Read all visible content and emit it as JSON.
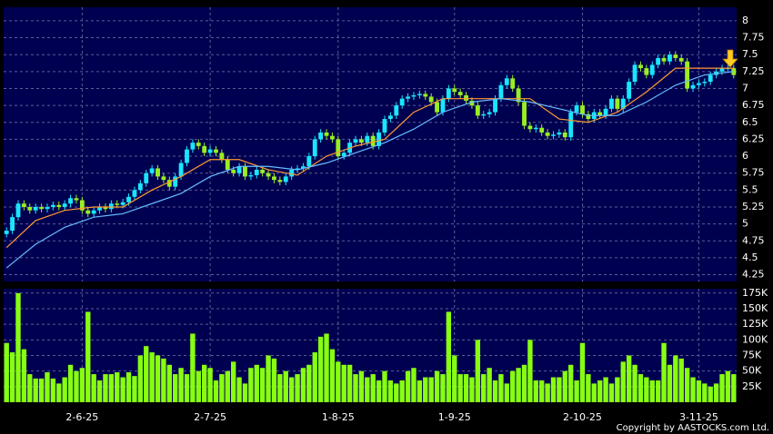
{
  "chart_data": [
    {
      "type": "candlestick",
      "up_color": "#19e6ff",
      "down_color": "#99ee22",
      "xlim": [
        -0.5,
        125.5
      ],
      "ylim": [
        4.15,
        8.2
      ],
      "yticks": [
        4.25,
        4.5,
        4.75,
        5,
        5.25,
        5.5,
        5.75,
        6,
        6.25,
        6.5,
        6.75,
        7,
        7.25,
        7.5,
        7.75,
        8
      ],
      "grid": true,
      "open": [
        4.85,
        4.9,
        5.1,
        5.3,
        5.25,
        5.2,
        5.25,
        5.22,
        5.25,
        5.28,
        5.25,
        5.3,
        5.38,
        5.35,
        5.2,
        5.15,
        5.2,
        5.25,
        5.22,
        5.3,
        5.28,
        5.32,
        5.4,
        5.5,
        5.6,
        5.75,
        5.82,
        5.7,
        5.65,
        5.55,
        5.7,
        5.9,
        6.1,
        6.2,
        6.15,
        6.05,
        6.1,
        6.05,
        5.95,
        5.8,
        5.75,
        5.85,
        5.7,
        5.72,
        5.8,
        5.75,
        5.7,
        5.65,
        5.62,
        5.7,
        5.8,
        5.82,
        5.85,
        6.0,
        6.25,
        6.35,
        6.3,
        6.25,
        6.0,
        6.05,
        6.2,
        6.25,
        6.2,
        6.3,
        6.15,
        6.35,
        6.55,
        6.6,
        6.75,
        6.85,
        6.88,
        6.9,
        6.92,
        6.88,
        6.8,
        6.65,
        6.85,
        7.0,
        6.95,
        6.9,
        6.82,
        6.75,
        6.6,
        6.62,
        6.65,
        6.85,
        7.05,
        7.15,
        7.0,
        6.8,
        6.45,
        6.4,
        6.42,
        6.35,
        6.3,
        6.32,
        6.35,
        6.28,
        6.65,
        6.75,
        6.62,
        6.55,
        6.65,
        6.6,
        6.7,
        6.85,
        6.7,
        6.85,
        7.1,
        7.35,
        7.3,
        7.2,
        7.35,
        7.45,
        7.4,
        7.5,
        7.45,
        7.4,
        7.0,
        7.05,
        7.08,
        7.1,
        7.2,
        7.25,
        7.3,
        7.3
      ],
      "high": [
        4.95,
        5.15,
        5.35,
        5.35,
        5.3,
        5.3,
        5.3,
        5.3,
        5.33,
        5.33,
        5.35,
        5.43,
        5.43,
        5.4,
        5.25,
        5.25,
        5.3,
        5.3,
        5.35,
        5.35,
        5.37,
        5.45,
        5.55,
        5.65,
        5.8,
        5.87,
        5.87,
        5.75,
        5.7,
        5.75,
        5.95,
        6.15,
        6.25,
        6.25,
        6.2,
        6.15,
        6.15,
        6.1,
        6.0,
        5.85,
        5.9,
        5.9,
        5.77,
        5.85,
        5.85,
        5.8,
        5.75,
        5.7,
        5.75,
        5.85,
        5.87,
        5.9,
        6.05,
        6.3,
        6.4,
        6.4,
        6.35,
        6.3,
        6.1,
        6.25,
        6.3,
        6.3,
        6.35,
        6.35,
        6.4,
        6.6,
        6.65,
        6.8,
        6.9,
        6.93,
        6.95,
        6.97,
        6.97,
        6.93,
        6.85,
        6.9,
        7.05,
        7.05,
        7.0,
        6.95,
        6.87,
        6.8,
        6.67,
        6.7,
        6.9,
        7.1,
        7.2,
        7.2,
        7.05,
        6.85,
        6.5,
        6.47,
        6.47,
        6.4,
        6.37,
        6.4,
        6.4,
        6.7,
        6.8,
        6.8,
        6.67,
        6.7,
        6.7,
        6.75,
        6.9,
        6.9,
        6.9,
        7.15,
        7.4,
        7.4,
        7.35,
        7.4,
        7.5,
        7.5,
        7.55,
        7.55,
        7.5,
        7.45,
        7.1,
        7.13,
        7.15,
        7.25,
        7.3,
        7.35,
        7.35,
        7.35
      ],
      "low": [
        4.8,
        4.85,
        5.05,
        5.2,
        5.15,
        5.15,
        5.17,
        5.17,
        5.2,
        5.2,
        5.2,
        5.25,
        5.3,
        5.15,
        5.1,
        5.1,
        5.15,
        5.17,
        5.17,
        5.23,
        5.23,
        5.27,
        5.35,
        5.45,
        5.55,
        5.7,
        5.65,
        5.6,
        5.5,
        5.5,
        5.65,
        5.85,
        6.05,
        6.1,
        6.0,
        6.0,
        6.0,
        5.9,
        5.75,
        5.7,
        5.7,
        5.65,
        5.65,
        5.67,
        5.7,
        5.65,
        5.6,
        5.57,
        5.57,
        5.65,
        5.75,
        5.77,
        5.8,
        5.95,
        6.2,
        6.25,
        6.2,
        5.95,
        5.95,
        6.0,
        6.15,
        6.15,
        6.15,
        6.1,
        6.1,
        6.3,
        6.5,
        6.55,
        6.7,
        6.8,
        6.83,
        6.85,
        6.83,
        6.75,
        6.6,
        6.6,
        6.8,
        6.9,
        6.85,
        6.77,
        6.7,
        6.55,
        6.55,
        6.57,
        6.6,
        6.8,
        7.0,
        6.95,
        6.75,
        6.4,
        6.35,
        6.35,
        6.3,
        6.25,
        6.25,
        6.27,
        6.23,
        6.23,
        6.6,
        6.57,
        6.5,
        6.5,
        6.55,
        6.55,
        6.65,
        6.65,
        6.65,
        6.8,
        7.05,
        7.25,
        7.15,
        7.15,
        7.3,
        7.35,
        7.35,
        7.4,
        7.35,
        6.95,
        6.95,
        7.0,
        7.03,
        7.05,
        7.15,
        7.2,
        7.25,
        7.15
      ],
      "close": [
        4.9,
        5.1,
        5.3,
        5.25,
        5.2,
        5.25,
        5.22,
        5.25,
        5.28,
        5.25,
        5.3,
        5.38,
        5.35,
        5.2,
        5.15,
        5.2,
        5.25,
        5.22,
        5.3,
        5.28,
        5.32,
        5.4,
        5.5,
        5.6,
        5.75,
        5.82,
        5.7,
        5.65,
        5.55,
        5.7,
        5.9,
        6.1,
        6.2,
        6.15,
        6.05,
        6.1,
        6.05,
        5.95,
        5.8,
        5.75,
        5.85,
        5.7,
        5.72,
        5.8,
        5.75,
        5.7,
        5.65,
        5.62,
        5.7,
        5.8,
        5.82,
        5.85,
        6.0,
        6.25,
        6.35,
        6.3,
        6.25,
        6.0,
        6.05,
        6.2,
        6.25,
        6.2,
        6.3,
        6.15,
        6.35,
        6.55,
        6.6,
        6.75,
        6.85,
        6.88,
        6.9,
        6.92,
        6.88,
        6.8,
        6.65,
        6.85,
        7.0,
        6.95,
        6.9,
        6.82,
        6.75,
        6.6,
        6.62,
        6.65,
        6.85,
        7.05,
        7.15,
        7.0,
        6.8,
        6.45,
        6.4,
        6.42,
        6.35,
        6.3,
        6.32,
        6.35,
        6.28,
        6.65,
        6.75,
        6.62,
        6.55,
        6.65,
        6.6,
        6.7,
        6.85,
        6.7,
        6.85,
        7.1,
        7.35,
        7.3,
        7.2,
        7.35,
        7.45,
        7.4,
        7.5,
        7.45,
        7.4,
        7.0,
        7.05,
        7.08,
        7.1,
        7.2,
        7.25,
        7.3,
        7.3,
        7.2
      ],
      "lines": [
        {
          "color": "#ff9933",
          "x": [
            0,
            5,
            10,
            15,
            20,
            25,
            30,
            35,
            40,
            45,
            50,
            55,
            60,
            65,
            70,
            75,
            80,
            85,
            90,
            95,
            100,
            105,
            110,
            115,
            120,
            125
          ],
          "values": [
            4.65,
            5.05,
            5.2,
            5.25,
            5.25,
            5.5,
            5.7,
            5.95,
            5.95,
            5.8,
            5.72,
            6.0,
            6.15,
            6.25,
            6.65,
            6.85,
            6.85,
            6.85,
            6.85,
            6.55,
            6.5,
            6.65,
            6.95,
            7.3,
            7.3,
            7.3
          ]
        },
        {
          "color": "#66bbff",
          "x": [
            0,
            5,
            10,
            15,
            20,
            25,
            30,
            35,
            40,
            45,
            50,
            55,
            60,
            65,
            70,
            75,
            80,
            85,
            90,
            95,
            100,
            105,
            110,
            115,
            120,
            125
          ],
          "values": [
            4.35,
            4.7,
            4.95,
            5.1,
            5.15,
            5.3,
            5.45,
            5.7,
            5.85,
            5.85,
            5.8,
            5.9,
            6.05,
            6.2,
            6.4,
            6.65,
            6.8,
            6.85,
            6.8,
            6.7,
            6.6,
            6.6,
            6.8,
            7.05,
            7.2,
            7.25
          ]
        }
      ]
    },
    {
      "type": "bar",
      "color": "#88ff11",
      "xlim": [
        -0.5,
        125.5
      ],
      "ylim": [
        0,
        182000
      ],
      "grid": true,
      "yticks": [
        {
          "value": 25000,
          "label": "25K"
        },
        {
          "value": 50000,
          "label": "50K"
        },
        {
          "value": 75000,
          "label": "75K"
        },
        {
          "value": 100000,
          "label": "100K"
        },
        {
          "value": 125000,
          "label": "125K"
        },
        {
          "value": 150000,
          "label": "150K"
        },
        {
          "value": 175000,
          "label": "175K"
        }
      ],
      "xticks": [
        {
          "value": 13,
          "label": "2-6-25"
        },
        {
          "value": 35,
          "label": "2-7-25"
        },
        {
          "value": 57,
          "label": "1-8-25"
        },
        {
          "value": 77,
          "label": "1-9-25"
        },
        {
          "value": 99,
          "label": "2-10-25"
        },
        {
          "value": 119,
          "label": "3-11-25"
        }
      ],
      "values": [
        95000,
        80000,
        175000,
        85000,
        45000,
        38000,
        38000,
        48000,
        38000,
        30000,
        40000,
        60000,
        50000,
        55000,
        145000,
        45000,
        35000,
        45000,
        45000,
        48000,
        40000,
        48000,
        42000,
        75000,
        90000,
        80000,
        75000,
        70000,
        60000,
        45000,
        55000,
        45000,
        110000,
        50000,
        60000,
        55000,
        35000,
        45000,
        50000,
        65000,
        40000,
        30000,
        55000,
        60000,
        55000,
        75000,
        70000,
        45000,
        50000,
        40000,
        45000,
        55000,
        60000,
        80000,
        105000,
        110000,
        85000,
        65000,
        60000,
        60000,
        45000,
        50000,
        40000,
        45000,
        35000,
        50000,
        35000,
        30000,
        35000,
        50000,
        55000,
        35000,
        40000,
        40000,
        50000,
        45000,
        145000,
        75000,
        45000,
        45000,
        40000,
        100000,
        45000,
        55000,
        35000,
        45000,
        30000,
        50000,
        55000,
        60000,
        100000,
        35000,
        35000,
        30000,
        40000,
        40000,
        50000,
        60000,
        35000,
        95000,
        45000,
        30000,
        35000,
        40000,
        30000,
        40000,
        65000,
        75000,
        60000,
        45000,
        40000,
        35000,
        35000,
        95000,
        60000,
        75000,
        70000,
        55000,
        40000,
        35000,
        30000,
        25000,
        30000,
        45000,
        50000,
        45000
      ]
    }
  ],
  "copyright": "Copyright by AASTOCKS.com Ltd."
}
